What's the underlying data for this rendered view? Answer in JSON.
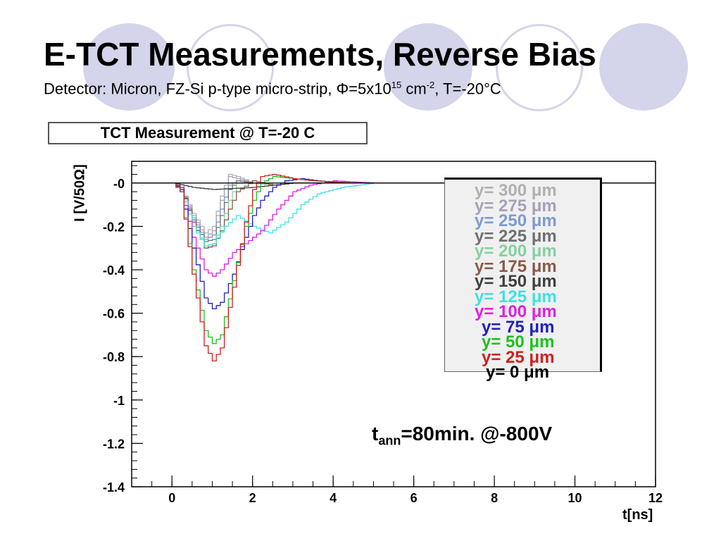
{
  "slide": {
    "title": "E-TCT Measurements, Reverse Bias",
    "subtitle_pre": "Detector: Micron, FZ-Si p-type micro-strip, Φ=5x10",
    "subtitle_exp1": "15",
    "subtitle_mid": " cm",
    "subtitle_exp2": "-2",
    "subtitle_post": ", T=-20°C"
  },
  "plot": {
    "title": "TCT Measurement @ T=-20 C",
    "ylabel": "I [V/50Ω]",
    "xlabel": "t[ns]",
    "annotation_main": "t",
    "annotation_sub": "ann",
    "annotation_rest": "=80min. @-800V"
  },
  "chart_data": {
    "type": "line",
    "title": "TCT Measurement @ T=-20 C",
    "xlabel": "t[ns]",
    "ylabel": "I [V/50Ω]",
    "xlim": [
      -1.0,
      12
    ],
    "ylim": [
      -1.4,
      0.1
    ],
    "xticks": [
      0,
      2,
      4,
      6,
      8,
      10,
      12
    ],
    "yticks": [
      0,
      -0.2,
      -0.4,
      -0.6,
      -0.8,
      -1,
      -1.2,
      -1.4
    ],
    "ytick_labels": [
      "-0",
      "-0.2",
      "-0.4",
      "-0.6",
      "-0.8",
      "-1",
      "-1.2",
      "-1.4"
    ],
    "grid": false,
    "legend_position": "right",
    "series": [
      {
        "name": "y= 300  μm",
        "color": "#b0b0b0",
        "x": [
          -1,
          0,
          0.2,
          0.5,
          0.8,
          1.0,
          1.2,
          1.4,
          1.6,
          2.0,
          2.5,
          3,
          4,
          12
        ],
        "y": [
          0,
          0,
          -0.02,
          -0.14,
          -0.23,
          -0.2,
          -0.06,
          0.04,
          0.03,
          0.0,
          -0.01,
          0,
          0,
          0
        ]
      },
      {
        "name": "y= 275  μm",
        "color": "#a9a0b8",
        "x": [
          -1,
          0,
          0.2,
          0.5,
          0.8,
          1.0,
          1.2,
          1.4,
          1.6,
          2.0,
          2.5,
          3,
          4,
          12
        ],
        "y": [
          0,
          0,
          -0.02,
          -0.15,
          -0.25,
          -0.22,
          -0.08,
          0.03,
          0.02,
          0.0,
          -0.01,
          0,
          0,
          0
        ]
      },
      {
        "name": "y= 250  μm",
        "color": "#7e9ad0",
        "x": [
          -1,
          0,
          0.2,
          0.5,
          0.8,
          1.0,
          1.2,
          1.4,
          1.6,
          2.0,
          2.5,
          3,
          4,
          12
        ],
        "y": [
          0,
          0,
          -0.02,
          -0.16,
          -0.26,
          -0.24,
          -0.12,
          -0.01,
          0.01,
          0.0,
          -0.01,
          0,
          0,
          0
        ]
      },
      {
        "name": "y= 225  μm",
        "color": "#707070",
        "x": [
          -1,
          0,
          0.2,
          0.5,
          0.8,
          1.0,
          1.2,
          1.4,
          1.6,
          2.0,
          2.5,
          3,
          4,
          12
        ],
        "y": [
          0,
          0,
          -0.02,
          -0.17,
          -0.27,
          -0.26,
          -0.15,
          -0.03,
          0.01,
          0.0,
          -0.01,
          0,
          0,
          0
        ]
      },
      {
        "name": "y= 200  μm",
        "color": "#86d0a0",
        "x": [
          -1,
          0,
          0.2,
          0.5,
          0.8,
          1.0,
          1.2,
          1.4,
          1.6,
          2.0,
          2.5,
          3,
          4,
          12
        ],
        "y": [
          0,
          0,
          -0.02,
          -0.18,
          -0.29,
          -0.28,
          -0.2,
          -0.08,
          0.0,
          0.0,
          -0.01,
          0,
          0,
          0
        ]
      },
      {
        "name": "y= 175  μm",
        "color": "#8a5a4a",
        "x": [
          -1,
          0,
          0.2,
          0.5,
          0.8,
          1.0,
          1.2,
          1.4,
          1.6,
          2.0,
          2.5,
          3,
          4,
          12
        ],
        "y": [
          0,
          0,
          -0.02,
          -0.18,
          -0.3,
          -0.29,
          -0.22,
          -0.12,
          -0.04,
          0.01,
          -0.01,
          0,
          0,
          0
        ]
      },
      {
        "name": "y= 150  μm",
        "color": "#404040",
        "x": [
          -1,
          0,
          0.5,
          1.0,
          1.5,
          2.0,
          2.5,
          3.0,
          4.0,
          12
        ],
        "y": [
          0,
          0,
          -0.02,
          -0.03,
          -0.025,
          -0.02,
          -0.01,
          0,
          0,
          0
        ]
      },
      {
        "name": "y= 125  μm",
        "color": "#40e0e0",
        "x": [
          -1,
          0,
          0.2,
          0.5,
          0.8,
          1.0,
          1.3,
          1.6,
          2.0,
          2.4,
          2.8,
          3.2,
          3.6,
          4.2,
          5,
          12
        ],
        "y": [
          0,
          0,
          -0.03,
          -0.2,
          -0.29,
          -0.28,
          -0.2,
          -0.15,
          -0.2,
          -0.23,
          -0.18,
          -0.1,
          -0.05,
          -0.02,
          0,
          0
        ]
      },
      {
        "name": "y= 100  μm",
        "color": "#e020e0",
        "x": [
          -1,
          0,
          0.2,
          0.5,
          0.8,
          1.0,
          1.2,
          1.5,
          1.8,
          2.2,
          2.6,
          3.0,
          3.4,
          4.0,
          5,
          12
        ],
        "y": [
          0,
          0,
          -0.03,
          -0.25,
          -0.4,
          -0.43,
          -0.4,
          -0.32,
          -0.28,
          -0.22,
          -0.12,
          -0.04,
          -0.01,
          0.01,
          0,
          0
        ]
      },
      {
        "name": "y= 75  μm",
        "color": "#2020c0",
        "x": [
          -1,
          0,
          0.2,
          0.5,
          0.8,
          1.0,
          1.2,
          1.5,
          1.8,
          2.0,
          2.2,
          2.5,
          2.8,
          3.2,
          3.6,
          4.2,
          5,
          12
        ],
        "y": [
          0,
          0,
          -0.03,
          -0.3,
          -0.53,
          -0.58,
          -0.55,
          -0.42,
          -0.25,
          -0.15,
          -0.08,
          -0.02,
          0.01,
          0.02,
          0.01,
          0.0,
          0,
          0
        ]
      },
      {
        "name": "y= 50  μm",
        "color": "#20c020",
        "x": [
          -1,
          0,
          0.2,
          0.5,
          0.8,
          1.0,
          1.2,
          1.5,
          1.8,
          2.0,
          2.2,
          2.5,
          3.0,
          3.5,
          4.5,
          12
        ],
        "y": [
          0,
          0,
          -0.04,
          -0.4,
          -0.68,
          -0.74,
          -0.7,
          -0.45,
          -0.2,
          -0.08,
          0.0,
          0.03,
          0.02,
          0.01,
          0,
          0
        ]
      },
      {
        "name": "y= 25  μm",
        "color": "#d02020",
        "x": [
          -1,
          0,
          0.2,
          0.5,
          0.8,
          1.0,
          1.2,
          1.5,
          1.8,
          2.0,
          2.2,
          2.5,
          3.0,
          3.5,
          4.5,
          12
        ],
        "y": [
          0,
          0,
          -0.04,
          -0.42,
          -0.75,
          -0.82,
          -0.76,
          -0.48,
          -0.18,
          -0.03,
          0.03,
          0.04,
          0.02,
          0.01,
          0,
          0
        ]
      },
      {
        "name": "y= 0  μm",
        "color": "#000000",
        "x": [
          -1,
          12
        ],
        "y": [
          0,
          0
        ]
      }
    ]
  }
}
